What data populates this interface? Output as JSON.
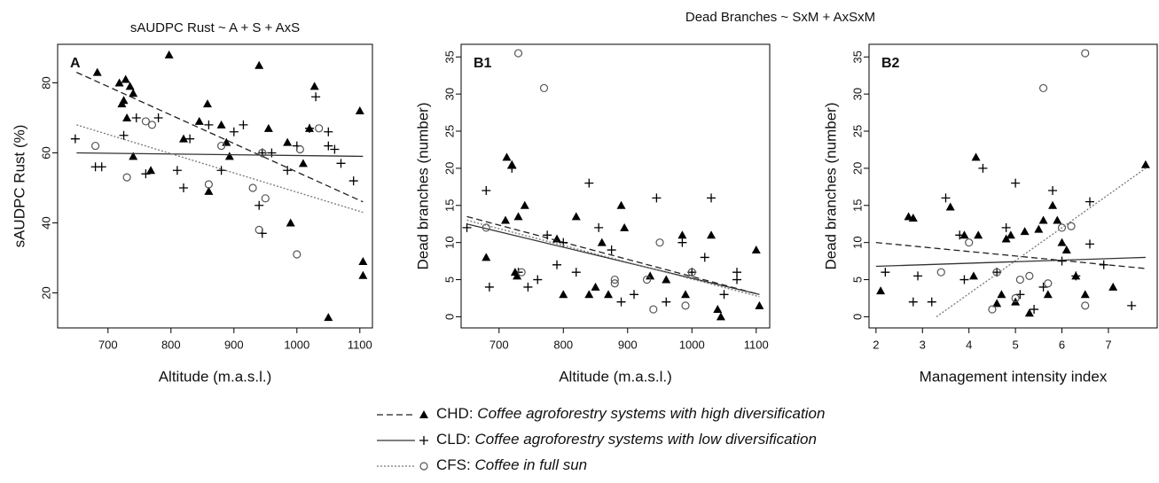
{
  "title": "Dead Branches ~ SxM + AxSxM",
  "legend": [
    {
      "code": "CHD:",
      "description": "Coffee agroforestry systems with high diversification"
    },
    {
      "code": "CLD:",
      "description": "Coffee agroforestry systems with low diversification"
    },
    {
      "code": "CFS:",
      "description": "Coffee in full sun"
    }
  ],
  "chart_data": [
    {
      "type": "scatter",
      "title": "sAUDPC Rust ~ A + S + AxS",
      "label": "A",
      "x_label": "Altitude (m.a.s.l.)",
      "y_label": "sAUDPC Rust (%)",
      "xlim": [
        620,
        1120
      ],
      "ylim": [
        10,
        91
      ],
      "xticks": [
        700,
        800,
        900,
        1000,
        1100
      ],
      "yticks": [
        20,
        40,
        60,
        80
      ],
      "series": [
        {
          "marker": "triangle",
          "color": "#000000",
          "x": [
            683,
            718,
            728,
            735,
            740,
            722,
            725,
            730,
            740,
            768,
            797,
            820,
            845,
            858,
            860,
            880,
            888,
            893,
            940,
            955,
            985,
            990,
            1010,
            1028,
            1020,
            1050,
            1100,
            1105,
            1105
          ],
          "values": [
            83,
            80,
            81,
            79,
            77,
            74,
            75,
            70,
            59,
            55,
            88,
            64,
            69,
            74,
            49,
            68,
            63,
            59,
            85,
            67,
            63,
            40,
            57,
            79,
            67,
            13,
            72,
            29,
            25
          ],
          "line": {
            "dash": "dashed",
            "x": [
              650,
              1105
            ],
            "values": [
              83,
              46
            ]
          }
        },
        {
          "marker": "plus",
          "color": "#000000",
          "x": [
            648,
            680,
            690,
            725,
            745,
            760,
            780,
            810,
            820,
            830,
            860,
            880,
            900,
            915,
            940,
            945,
            945,
            960,
            985,
            1000,
            1020,
            1030,
            1050,
            1050,
            1060,
            1070,
            1090
          ],
          "values": [
            64,
            56,
            56,
            65,
            70,
            54,
            70,
            55,
            50,
            64,
            68,
            55,
            66,
            68,
            45,
            37,
            60,
            60,
            55,
            62,
            67,
            76,
            66,
            62,
            61,
            57,
            52
          ],
          "line": {
            "dash": "solid",
            "x": [
              650,
              1105
            ],
            "values": [
              60,
              59
            ]
          }
        },
        {
          "marker": "circle",
          "color": "#555555",
          "x": [
            680,
            730,
            760,
            770,
            860,
            880,
            930,
            940,
            945,
            950,
            1000,
            1005,
            1035
          ],
          "values": [
            62,
            53,
            69,
            68,
            51,
            62,
            50,
            38,
            60,
            47,
            31,
            61,
            67
          ],
          "line": {
            "dash": "dotted",
            "x": [
              650,
              1105
            ],
            "values": [
              68,
              43
            ]
          }
        }
      ]
    },
    {
      "type": "scatter",
      "label": "B1",
      "x_label": "Altitude (m.a.s.l.)",
      "y_label": "Dead branches (number)",
      "xlim": [
        641,
        1121
      ],
      "ylim": [
        -1.5,
        36.7
      ],
      "xticks": [
        700,
        800,
        900,
        1000,
        1100
      ],
      "yticks": [
        0,
        5,
        10,
        15,
        20,
        25,
        30,
        35
      ],
      "series": [
        {
          "marker": "triangle",
          "color": "#000000",
          "x": [
            680,
            710,
            712,
            720,
            725,
            728,
            730,
            740,
            790,
            800,
            820,
            840,
            850,
            860,
            870,
            890,
            895,
            935,
            960,
            985,
            990,
            1030,
            1040,
            1045,
            1100,
            1105
          ],
          "values": [
            8,
            13,
            21.5,
            20.5,
            6,
            5.5,
            13.5,
            15,
            10.5,
            3,
            13.5,
            3,
            4,
            10,
            3,
            15,
            12,
            5.5,
            5,
            11,
            3,
            11,
            1,
            0,
            9,
            1.5
          ],
          "line": {
            "dash": "dashed",
            "x": [
              650,
              1105
            ],
            "values": [
              13.5,
              3
            ]
          }
        },
        {
          "marker": "plus",
          "color": "#000000",
          "x": [
            650,
            680,
            685,
            720,
            730,
            745,
            760,
            775,
            790,
            800,
            820,
            840,
            855,
            875,
            890,
            910,
            945,
            960,
            985,
            1000,
            1020,
            1030,
            1050,
            1070,
            1070
          ],
          "values": [
            12,
            17,
            4,
            20,
            6,
            4,
            5,
            11,
            7,
            10,
            6,
            18,
            12,
            9,
            2,
            3,
            16,
            2,
            10,
            6,
            8,
            16,
            3,
            6,
            5
          ],
          "line": {
            "dash": "solid",
            "x": [
              650,
              1105
            ],
            "values": [
              12.5,
              3
            ]
          }
        },
        {
          "marker": "circle",
          "color": "#555555",
          "x": [
            730,
            770,
            680,
            735,
            880,
            880,
            930,
            940,
            950,
            990,
            1000
          ],
          "values": [
            35.5,
            30.8,
            12,
            6,
            5,
            4.5,
            5,
            1,
            10,
            1.5,
            6
          ],
          "line": {
            "dash": "dotted",
            "x": [
              650,
              1105
            ],
            "values": [
              13,
              2.7
            ]
          }
        }
      ]
    },
    {
      "type": "scatter",
      "label": "B2",
      "x_label": "Management intensity index",
      "y_label": "Dead branches (number)",
      "xlim": [
        1.85,
        8.05
      ],
      "ylim": [
        -1.5,
        36.7
      ],
      "xticks": [
        2,
        3,
        4,
        5,
        6,
        7
      ],
      "yticks": [
        0,
        5,
        10,
        15,
        20,
        25,
        30,
        35
      ],
      "series": [
        {
          "marker": "triangle",
          "color": "#000000",
          "x": [
            2.1,
            2.7,
            2.8,
            3.6,
            3.9,
            4.1,
            4.15,
            4.2,
            4.6,
            4.7,
            4.8,
            4.9,
            5.0,
            5.2,
            5.3,
            5.5,
            5.6,
            5.7,
            5.8,
            5.9,
            6.0,
            6.1,
            6.3,
            6.5,
            7.1,
            7.8
          ],
          "values": [
            3.5,
            13.5,
            13.3,
            14.8,
            11,
            5.5,
            21.5,
            11,
            1.8,
            3,
            10.5,
            11,
            2,
            11.5,
            0.5,
            11.8,
            13,
            3,
            15,
            13,
            10,
            9,
            5.5,
            3,
            4,
            20.5
          ],
          "line": {
            "dash": "dashed",
            "x": [
              2,
              7.8
            ],
            "values": [
              10,
              6.5
            ]
          }
        },
        {
          "marker": "plus",
          "color": "#000000",
          "x": [
            2.2,
            2.8,
            2.9,
            3.2,
            3.5,
            3.8,
            3.9,
            4.3,
            4.6,
            4.8,
            5.0,
            5.1,
            5.4,
            5.6,
            5.8,
            6.0,
            6.3,
            6.6,
            6.6,
            6.9,
            7.5
          ],
          "values": [
            6,
            2,
            5.5,
            2,
            16,
            11,
            5,
            20,
            6,
            12,
            18,
            3,
            1,
            4,
            17,
            7.5,
            5.5,
            15.5,
            9.8,
            7,
            1.5
          ],
          "line": {
            "dash": "solid",
            "x": [
              2,
              7.8
            ],
            "values": [
              6.8,
              8
            ]
          }
        },
        {
          "marker": "circle",
          "color": "#555555",
          "x": [
            3.4,
            4.0,
            4.5,
            4.6,
            5.0,
            5.1,
            5.3,
            5.6,
            5.7,
            6.0,
            6.2,
            6.5,
            6.5
          ],
          "values": [
            6,
            10,
            1,
            6,
            2.5,
            5,
            5.5,
            30.8,
            4.5,
            12,
            12.2,
            35.5,
            1.5
          ],
          "line": {
            "dash": "dotted",
            "x": [
              3.3,
              7.8
            ],
            "values": [
              0,
              20
            ]
          }
        }
      ]
    }
  ]
}
